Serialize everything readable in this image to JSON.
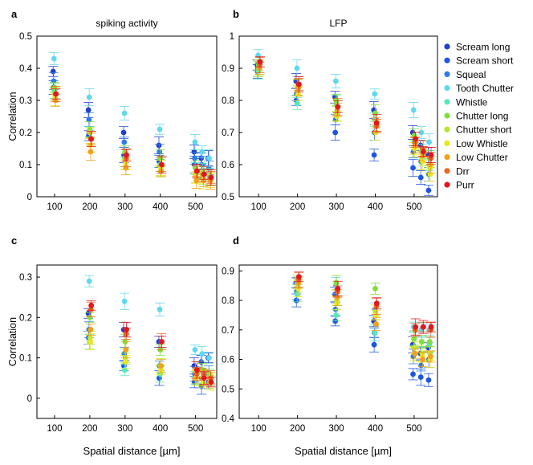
{
  "chart_data": [
    {
      "type": "scatter",
      "panel": "a",
      "title": "spiking activity",
      "xlabel": "",
      "ylabel": "Correlation",
      "xlim": [
        50,
        560
      ],
      "ylim": [
        0,
        0.5
      ],
      "xticks": [
        100,
        200,
        300,
        400,
        500
      ],
      "yticks": [
        0,
        0.1,
        0.2,
        0.3,
        0.4,
        0.5
      ],
      "x": [
        100,
        200,
        300,
        400,
        500,
        520,
        540
      ],
      "series": [
        {
          "name": "Scream long",
          "values": [
            0.39,
            0.27,
            0.2,
            0.16,
            0.14,
            0.12,
            0.12
          ]
        },
        {
          "name": "Scream short",
          "values": [
            0.34,
            0.19,
            0.13,
            0.11,
            0.1,
            0.08,
            0.07
          ]
        },
        {
          "name": "Squeal",
          "values": [
            0.36,
            0.24,
            0.17,
            0.14,
            0.12,
            0.1,
            0.09
          ]
        },
        {
          "name": "Tooth Chutter",
          "values": [
            0.43,
            0.31,
            0.26,
            0.21,
            0.17,
            0.14,
            0.12
          ]
        },
        {
          "name": "Whistle",
          "values": [
            0.33,
            0.2,
            0.12,
            0.1,
            0.09,
            0.08,
            0.07
          ]
        },
        {
          "name": "Chutter long",
          "values": [
            0.34,
            0.21,
            0.14,
            0.12,
            0.09,
            0.07,
            0.06
          ]
        },
        {
          "name": "Chutter short",
          "values": [
            0.32,
            0.2,
            0.11,
            0.08,
            0.07,
            0.06,
            0.05
          ]
        },
        {
          "name": "Low Whistle",
          "values": [
            0.31,
            0.16,
            0.1,
            0.09,
            0.06,
            0.05,
            0.05
          ]
        },
        {
          "name": "Low Chutter",
          "values": [
            0.3,
            0.14,
            0.09,
            0.08,
            0.05,
            0.05,
            0.05
          ]
        },
        {
          "name": "Drr",
          "values": [
            0.32,
            0.18,
            0.12,
            0.1,
            0.08,
            0.07,
            0.06
          ]
        },
        {
          "name": "Purr",
          "values": [
            0.32,
            0.18,
            0.13,
            0.1,
            0.08,
            0.07,
            0.06
          ]
        }
      ]
    },
    {
      "type": "scatter",
      "panel": "b",
      "title": "LFP",
      "xlabel": "",
      "ylabel": "",
      "xlim": [
        50,
        560
      ],
      "ylim": [
        0.5,
        1.0
      ],
      "xticks": [
        100,
        200,
        300,
        400,
        500
      ],
      "yticks": [
        0.5,
        0.6,
        0.7,
        0.8,
        0.9,
        1.0
      ],
      "x": [
        100,
        200,
        300,
        400,
        500,
        520,
        540
      ],
      "series": [
        {
          "name": "Scream long",
          "values": [
            0.91,
            0.86,
            0.81,
            0.77,
            0.7,
            0.66,
            0.63
          ]
        },
        {
          "name": "Scream short",
          "values": [
            0.89,
            0.8,
            0.7,
            0.63,
            0.59,
            0.56,
            0.52
          ]
        },
        {
          "name": "Squeal",
          "values": [
            0.9,
            0.82,
            0.74,
            0.7,
            0.64,
            0.61,
            0.57
          ]
        },
        {
          "name": "Tooth Chutter",
          "values": [
            0.94,
            0.9,
            0.86,
            0.82,
            0.77,
            0.7,
            0.67
          ]
        },
        {
          "name": "Whistle",
          "values": [
            0.89,
            0.79,
            0.79,
            0.74,
            0.67,
            0.64,
            0.6
          ]
        },
        {
          "name": "Chutter long",
          "values": [
            0.91,
            0.84,
            0.8,
            0.76,
            0.69,
            0.64,
            0.62
          ]
        },
        {
          "name": "Chutter short",
          "values": [
            0.9,
            0.83,
            0.76,
            0.72,
            0.65,
            0.62,
            0.59
          ]
        },
        {
          "name": "Low Whistle",
          "values": [
            0.9,
            0.82,
            0.75,
            0.7,
            0.65,
            0.61,
            0.57
          ]
        },
        {
          "name": "Low Chutter",
          "values": [
            0.9,
            0.84,
            0.77,
            0.73,
            0.66,
            0.63,
            0.6
          ]
        },
        {
          "name": "Drr",
          "values": [
            0.91,
            0.85,
            0.78,
            0.72,
            0.67,
            0.65,
            0.62
          ]
        },
        {
          "name": "Purr",
          "values": [
            0.92,
            0.85,
            0.78,
            0.73,
            0.68,
            0.64,
            0.63
          ]
        }
      ]
    },
    {
      "type": "scatter",
      "panel": "c",
      "title": "",
      "xlabel": "Spatial distance [µm]",
      "ylabel": "Correlation",
      "xlim": [
        50,
        560
      ],
      "ylim": [
        -0.05,
        0.33
      ],
      "xticks": [
        100,
        200,
        300,
        400,
        500
      ],
      "yticks": [
        0,
        0.1,
        0.2,
        0.3
      ],
      "x": [
        200,
        300,
        400,
        500,
        520,
        540
      ],
      "series": [
        {
          "name": "Scream long",
          "values": [
            0.21,
            0.17,
            0.14,
            0.08,
            0.09,
            0.1
          ]
        },
        {
          "name": "Scream short",
          "values": [
            0.15,
            0.08,
            0.05,
            0.04,
            0.03,
            0.04
          ]
        },
        {
          "name": "Squeal",
          "values": [
            0.17,
            0.11,
            0.08,
            0.06,
            0.05,
            0.06
          ]
        },
        {
          "name": "Tooth Chutter",
          "values": [
            0.29,
            0.24,
            0.22,
            0.12,
            0.11,
            0.1
          ]
        },
        {
          "name": "Whistle",
          "values": [
            0.14,
            0.07,
            0.06,
            0.05,
            0.05,
            0.05
          ]
        },
        {
          "name": "Chutter long",
          "values": [
            0.2,
            0.14,
            0.12,
            0.07,
            0.07,
            0.06
          ]
        },
        {
          "name": "Chutter short",
          "values": [
            0.15,
            0.1,
            0.08,
            0.05,
            0.05,
            0.04
          ]
        },
        {
          "name": "Low Whistle",
          "values": [
            0.14,
            0.09,
            0.07,
            0.05,
            0.04,
            0.04
          ]
        },
        {
          "name": "Low Chutter",
          "values": [
            0.17,
            0.12,
            0.08,
            0.06,
            0.05,
            0.05
          ]
        },
        {
          "name": "Drr",
          "values": [
            0.22,
            0.16,
            0.14,
            0.06,
            0.06,
            0.05
          ]
        },
        {
          "name": "Purr",
          "values": [
            0.23,
            0.17,
            0.14,
            0.07,
            0.05,
            0.04
          ]
        }
      ]
    },
    {
      "type": "scatter",
      "panel": "d",
      "title": "",
      "xlabel": "Spatial distance [µm]",
      "ylabel": "",
      "xlim": [
        50,
        560
      ],
      "ylim": [
        0.4,
        0.92
      ],
      "xticks": [
        100,
        200,
        300,
        400,
        500
      ],
      "yticks": [
        0.4,
        0.5,
        0.6,
        0.7,
        0.8,
        0.9
      ],
      "x": [
        200,
        300,
        400,
        500,
        520,
        540
      ],
      "series": [
        {
          "name": "Scream long",
          "values": [
            0.86,
            0.82,
            0.73,
            0.65,
            0.62,
            0.64
          ]
        },
        {
          "name": "Scream short",
          "values": [
            0.8,
            0.73,
            0.65,
            0.55,
            0.54,
            0.53
          ]
        },
        {
          "name": "Squeal",
          "values": [
            0.83,
            0.77,
            0.69,
            0.61,
            0.58,
            0.6
          ]
        },
        {
          "name": "Tooth Chutter",
          "values": [
            0.86,
            0.85,
            0.77,
            0.71,
            0.7,
            0.7
          ]
        },
        {
          "name": "Whistle",
          "values": [
            0.82,
            0.75,
            0.69,
            0.67,
            0.66,
            0.65
          ]
        },
        {
          "name": "Chutter long",
          "values": [
            0.87,
            0.86,
            0.84,
            0.67,
            0.66,
            0.66
          ]
        },
        {
          "name": "Chutter short",
          "values": [
            0.85,
            0.8,
            0.76,
            0.64,
            0.62,
            0.62
          ]
        },
        {
          "name": "Low Whistle",
          "values": [
            0.84,
            0.79,
            0.75,
            0.62,
            0.61,
            0.6
          ]
        },
        {
          "name": "Low Chutter",
          "values": [
            0.86,
            0.81,
            0.72,
            0.62,
            0.6,
            0.61
          ]
        },
        {
          "name": "Drr",
          "values": [
            0.87,
            0.83,
            0.78,
            0.7,
            0.71,
            0.7
          ]
        },
        {
          "name": "Purr",
          "values": [
            0.88,
            0.84,
            0.79,
            0.71,
            0.71,
            0.71
          ]
        }
      ]
    }
  ],
  "legend": {
    "placement": "right",
    "entries": [
      {
        "label": "Scream long",
        "color": "#1f3fcc"
      },
      {
        "label": "Scream short",
        "color": "#1f55e0"
      },
      {
        "label": "Squeal",
        "color": "#2f7be6"
      },
      {
        "label": "Tooth Chutter",
        "color": "#5fd8f0"
      },
      {
        "label": "Whistle",
        "color": "#55e8b8"
      },
      {
        "label": "Chutter long",
        "color": "#7fe03a"
      },
      {
        "label": "Chutter short",
        "color": "#b6e62c"
      },
      {
        "label": "Low Whistle",
        "color": "#e8e81c"
      },
      {
        "label": "Low Chutter",
        "color": "#f3a01c"
      },
      {
        "label": "Drr",
        "color": "#f0641e"
      },
      {
        "label": "Purr",
        "color": "#e8141c"
      }
    ]
  }
}
